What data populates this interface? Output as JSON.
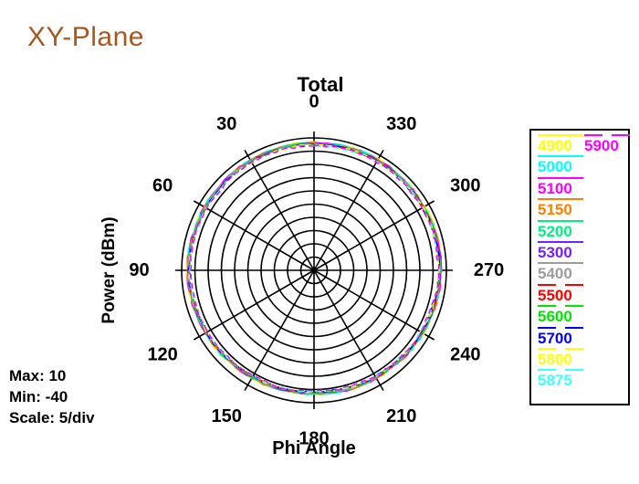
{
  "header": {
    "title": "XY-Plane",
    "title_color": "#a9571e"
  },
  "chart": {
    "title": "Total",
    "xlabel": "Phi Angle",
    "ylabel": "Power (dBm)"
  },
  "stats": {
    "max": "Max: 10",
    "min": "Min: -40",
    "scale": "Scale: 5/div"
  },
  "chart_data": {
    "type": "line",
    "subtype": "polar",
    "title": "Total",
    "angle_axis_label": "Phi Angle",
    "radial_axis_label": "Power (dBm)",
    "radial_max": 10,
    "radial_min": -40,
    "radial_div": 5,
    "grid_rings": 10,
    "grid_color": "#000000",
    "angle_zero": "top",
    "angle_direction": "counterclockwise",
    "angle_ticks": [
      0,
      30,
      60,
      90,
      120,
      150,
      180,
      210,
      240,
      270,
      300,
      330
    ],
    "angles_deg": [
      0,
      30,
      60,
      90,
      120,
      150,
      180,
      210,
      240,
      270,
      300,
      330,
      360
    ],
    "legend_position": "right",
    "series": [
      {
        "name": "4900",
        "color": "#ffff00",
        "line_style": "solid",
        "legend_col": 1,
        "power": [
          8.3,
          8.1,
          7.9,
          7.9,
          7.6,
          7.1,
          6.9,
          7.2,
          7.7,
          8.1,
          8.3,
          8.4,
          8.3
        ]
      },
      {
        "name": "5000",
        "color": "#00ffff",
        "line_style": "solid",
        "legend_col": 1,
        "power": [
          8.2,
          8.0,
          7.8,
          7.8,
          7.5,
          7.0,
          6.8,
          7.1,
          7.6,
          8.0,
          8.2,
          8.3,
          8.2
        ]
      },
      {
        "name": "5100",
        "color": "#ff00ff",
        "line_style": "solid",
        "legend_col": 1,
        "power": [
          8.1,
          7.9,
          7.7,
          7.7,
          7.4,
          6.9,
          6.7,
          7.0,
          7.5,
          7.9,
          8.1,
          8.2,
          8.1
        ]
      },
      {
        "name": "5150",
        "color": "#ff7f00",
        "line_style": "solid",
        "legend_col": 1,
        "power": [
          8.0,
          7.8,
          7.6,
          7.6,
          7.3,
          6.8,
          6.6,
          6.9,
          7.4,
          7.8,
          8.0,
          8.1,
          8.0
        ]
      },
      {
        "name": "5200",
        "color": "#00f07d",
        "line_style": "solid",
        "legend_col": 1,
        "power": [
          7.9,
          7.7,
          7.5,
          7.5,
          7.2,
          6.7,
          6.5,
          6.8,
          7.3,
          7.7,
          7.9,
          8.0,
          7.9
        ]
      },
      {
        "name": "5300",
        "color": "#7520ff",
        "line_style": "solid",
        "legend_col": 1,
        "power": [
          7.8,
          7.6,
          7.4,
          7.4,
          7.1,
          6.6,
          6.4,
          6.7,
          7.2,
          7.6,
          7.8,
          7.9,
          7.8
        ]
      },
      {
        "name": "5400",
        "color": "#9c9c9c",
        "line_style": "solid",
        "legend_col": 1,
        "power": [
          7.7,
          7.5,
          7.3,
          7.3,
          7.0,
          6.5,
          6.3,
          6.6,
          7.1,
          7.5,
          7.7,
          7.8,
          7.7
        ]
      },
      {
        "name": "5500",
        "color": "#ff0000",
        "line_style": "dashed",
        "legend_col": 1,
        "power": [
          7.6,
          7.4,
          7.2,
          7.2,
          6.9,
          6.4,
          6.2,
          6.5,
          7.0,
          7.4,
          7.6,
          7.7,
          7.6
        ]
      },
      {
        "name": "5600",
        "color": "#00e400",
        "line_style": "dashed",
        "legend_col": 1,
        "power": [
          7.5,
          7.3,
          7.1,
          7.1,
          6.8,
          6.3,
          6.1,
          6.4,
          6.9,
          7.3,
          7.5,
          7.6,
          7.5
        ]
      },
      {
        "name": "5700",
        "color": "#0000ff",
        "line_style": "dashed",
        "legend_col": 1,
        "power": [
          7.4,
          7.2,
          7.0,
          7.0,
          6.7,
          6.2,
          6.0,
          6.3,
          6.8,
          7.2,
          7.4,
          7.5,
          7.4
        ]
      },
      {
        "name": "5800",
        "color": "#ffff00",
        "line_style": "dashed",
        "legend_col": 1,
        "power": [
          7.3,
          7.1,
          6.9,
          6.9,
          6.6,
          6.1,
          5.9,
          6.2,
          6.7,
          7.1,
          7.3,
          7.4,
          7.3
        ]
      },
      {
        "name": "5875",
        "color": "#3cffff",
        "line_style": "dashed",
        "legend_col": 1,
        "power": [
          7.2,
          7.0,
          6.8,
          6.8,
          6.5,
          6.0,
          5.8,
          6.1,
          6.6,
          7.0,
          7.2,
          7.3,
          7.2
        ]
      },
      {
        "name": "5900",
        "color": "#ff00ff",
        "line_style": "dashed",
        "legend_col": 2,
        "power": [
          7.1,
          6.9,
          6.7,
          6.7,
          6.4,
          5.9,
          5.7,
          6.0,
          6.5,
          6.9,
          7.1,
          7.2,
          7.1
        ]
      }
    ]
  }
}
